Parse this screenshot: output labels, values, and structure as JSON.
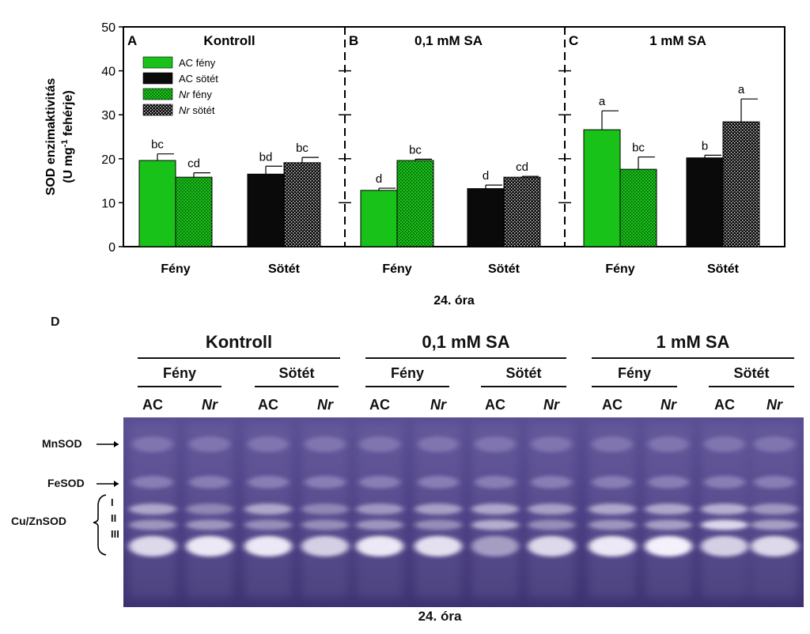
{
  "chart_data": {
    "type": "bar",
    "ylabel_line1": "SOD enzimaktivitás",
    "ylabel_line2_prefix": "(U mg",
    "ylabel_line2_sup": "-1",
    "ylabel_line2_suffix": " fehérje)",
    "ylim": [
      0,
      50
    ],
    "yticks": [
      "0",
      "10",
      "20",
      "30",
      "40",
      "50"
    ],
    "xlabel": "24. óra",
    "legend": [
      {
        "label": "AC fény",
        "italic_prefix": "",
        "fill": "green-solid"
      },
      {
        "label": "AC sötét",
        "italic_prefix": "",
        "fill": "black-solid"
      },
      {
        "label": " fény",
        "italic_prefix": "Nr",
        "fill": "green-dotted"
      },
      {
        "label": " sötét",
        "italic_prefix": "Nr",
        "fill": "black-dotted"
      }
    ],
    "panels": [
      {
        "letter": "A",
        "title": "Kontroll",
        "groups": [
          {
            "label": "Fény",
            "bars": [
              {
                "series": "AC fény",
                "value": 19.6,
                "error": 1.5,
                "letter": "bc"
              },
              {
                "series": "Nr fény",
                "value": 15.8,
                "error": 1.0,
                "letter": "cd"
              }
            ]
          },
          {
            "label": "Sötét",
            "bars": [
              {
                "series": "AC sötét",
                "value": 16.5,
                "error": 1.8,
                "letter": "bd"
              },
              {
                "series": "Nr sötét",
                "value": 19.1,
                "error": 1.2,
                "letter": "bc"
              }
            ]
          }
        ]
      },
      {
        "letter": "B",
        "title": "0,1 mM SA",
        "groups": [
          {
            "label": "Fény",
            "bars": [
              {
                "series": "AC fény",
                "value": 12.8,
                "error": 0.5,
                "letter": "d"
              },
              {
                "series": "Nr fény",
                "value": 19.6,
                "error": 0.3,
                "letter": "bc"
              }
            ]
          },
          {
            "label": "Sötét",
            "bars": [
              {
                "series": "AC sötét",
                "value": 13.2,
                "error": 0.8,
                "letter": "d"
              },
              {
                "series": "Nr sötét",
                "value": 15.8,
                "error": 0.2,
                "letter": "cd"
              }
            ]
          }
        ]
      },
      {
        "letter": "C",
        "title": "1 mM SA",
        "groups": [
          {
            "label": "Fény",
            "bars": [
              {
                "series": "AC fény",
                "value": 26.6,
                "error": 4.3,
                "letter": "a"
              },
              {
                "series": "Nr fény",
                "value": 17.6,
                "error": 2.8,
                "letter": "bc"
              }
            ]
          },
          {
            "label": "Sötét",
            "bars": [
              {
                "series": "AC sötét",
                "value": 20.2,
                "error": 0.6,
                "letter": "b"
              },
              {
                "series": "Nr sötét",
                "value": 28.4,
                "error": 5.2,
                "letter": "a"
              }
            ]
          }
        ]
      }
    ],
    "colors": {
      "green": "#19c219",
      "black": "#0a0a0a",
      "gel_bg": "#4a3e82",
      "gel_band": "#f5f1fb"
    }
  },
  "gel": {
    "panel_letter": "D",
    "treatments": [
      "Kontroll",
      "0,1 mM SA",
      "1 mM SA"
    ],
    "conditions": [
      "Fény",
      "Sötét"
    ],
    "lane_labels": [
      "AC",
      "Nr"
    ],
    "isoforms": {
      "mn": "MnSOD",
      "fe": "FeSOD",
      "cuzn": "Cu/ZnSOD",
      "roman": [
        "I",
        "II",
        "III"
      ]
    },
    "xlabel": "24. óra",
    "lane_band_intensity": [
      [
        0.55,
        0.45,
        0.85
      ],
      [
        0.35,
        0.45,
        0.95
      ],
      [
        0.55,
        0.4,
        0.95
      ],
      [
        0.35,
        0.4,
        0.8
      ],
      [
        0.45,
        0.45,
        0.95
      ],
      [
        0.5,
        0.4,
        0.9
      ],
      [
        0.55,
        0.6,
        0.5
      ],
      [
        0.5,
        0.4,
        0.85
      ],
      [
        0.55,
        0.45,
        0.95
      ],
      [
        0.55,
        0.5,
        1.0
      ],
      [
        0.6,
        0.85,
        0.8
      ],
      [
        0.45,
        0.5,
        0.85
      ]
    ]
  }
}
